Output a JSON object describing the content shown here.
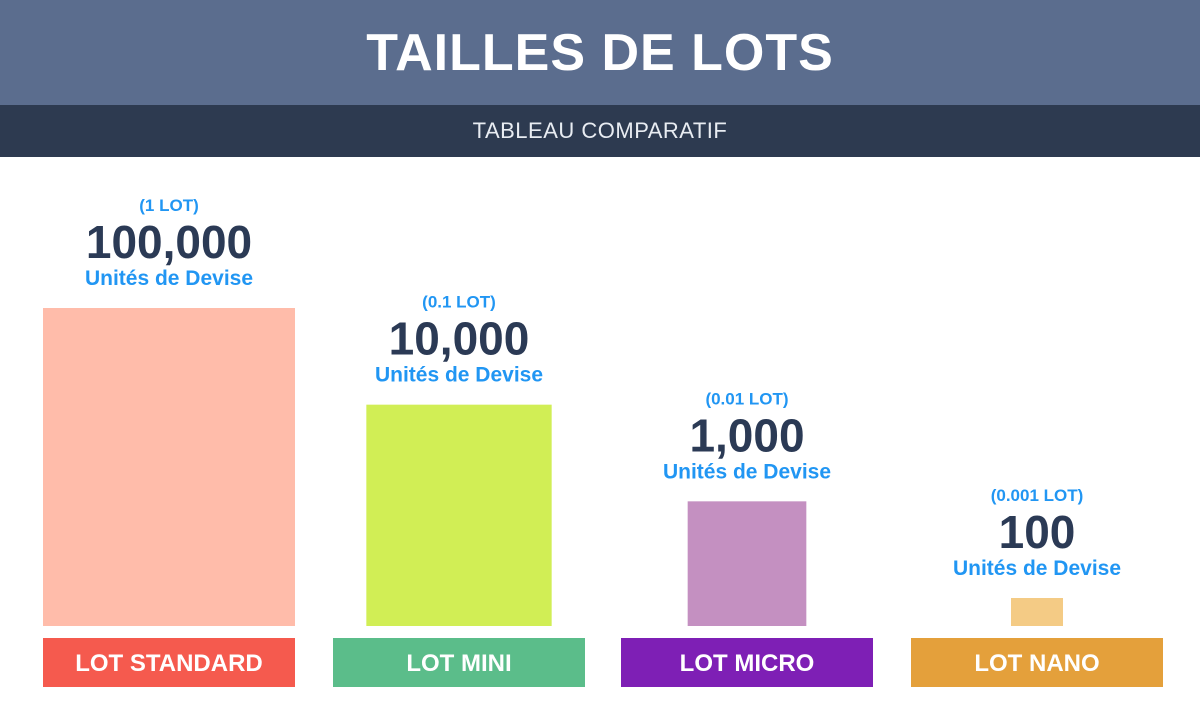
{
  "header": {
    "title": "TAILLES DE LOTS",
    "subtitle": "TABLEAU COMPARATIF"
  },
  "colors": {
    "header_bg": "#5b6d8e",
    "subheader_bg": "#2d3a50",
    "value_text": "#2b3a55",
    "accent_text": "#2196f3"
  },
  "chart_data": {
    "type": "bar",
    "title": "TAILLES DE LOTS",
    "subtitle": "TABLEAU COMPARATIF",
    "categories": [
      "LOT STANDARD",
      "LOT MINI",
      "LOT MICRO",
      "LOT NANO"
    ],
    "values": [
      100000,
      10000,
      1000,
      100
    ],
    "value_labels": [
      "100,000",
      "10,000",
      "1,000",
      "100"
    ],
    "lot_labels": [
      "(1 LOT)",
      "(0.1 LOT)",
      "(0.01 LOT)",
      "(0.001 LOT)"
    ],
    "unit_label": "Unités de Devise",
    "bar_colors": [
      "#ffbcaa",
      "#d1ee55",
      "#c490c1",
      "#f4cb85"
    ],
    "label_colors": [
      "#f55a4e",
      "#5bbd8a",
      "#7e1fb5",
      "#e4a03b"
    ],
    "grid": false,
    "legend": "none"
  }
}
